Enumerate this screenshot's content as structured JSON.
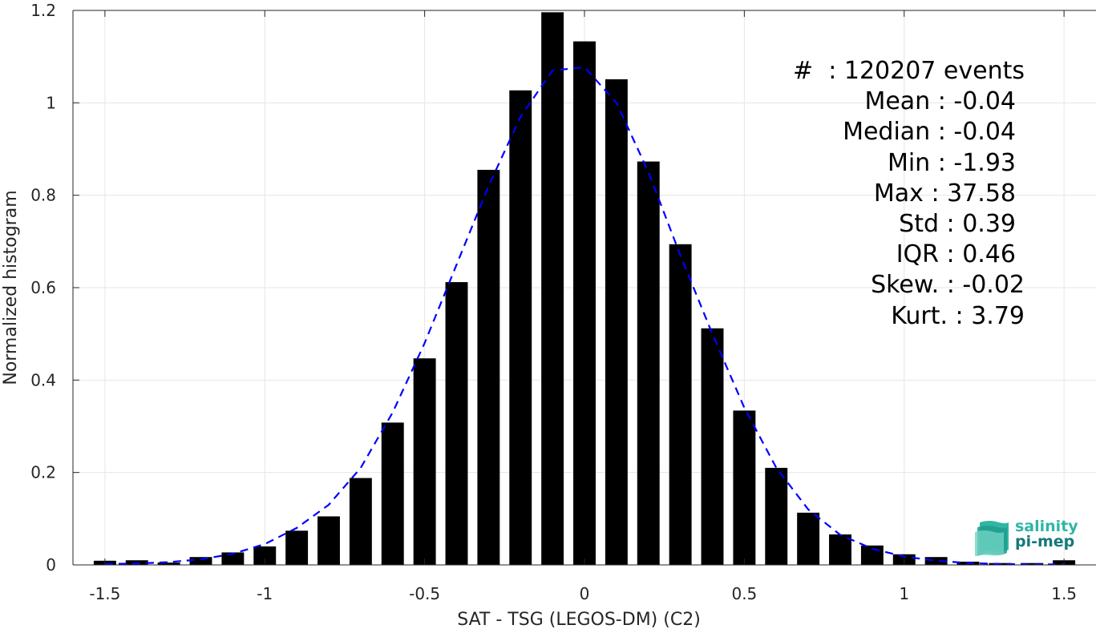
{
  "chart_data": {
    "type": "bar",
    "xlabel": "SAT - TSG (LEGOS-DM) (C2)",
    "ylabel": "Normalized histogram",
    "xlim": [
      -1.6,
      1.6
    ],
    "ylim": [
      0,
      1.2
    ],
    "xticks": [
      "-1.5",
      "-1",
      "-0.5",
      "0",
      "0.5",
      "1",
      "1.5"
    ],
    "xtick_values": [
      -1.5,
      -1,
      -0.5,
      0,
      0.5,
      1,
      1.5
    ],
    "yticks": [
      "0",
      "0.2",
      "0.4",
      "0.6",
      "0.8",
      "1",
      "1.2"
    ],
    "ytick_values": [
      0,
      0.2,
      0.4,
      0.6,
      0.8,
      1.0,
      1.2
    ],
    "grid": true,
    "bar_color": "#000000",
    "fit_color": "#0000ff",
    "bars": {
      "x": [
        -1.5,
        -1.4,
        -1.3,
        -1.2,
        -1.1,
        -1.0,
        -0.9,
        -0.8,
        -0.7,
        -0.6,
        -0.5,
        -0.4,
        -0.3,
        -0.2,
        -0.1,
        0.0,
        0.1,
        0.2,
        0.3,
        0.4,
        0.5,
        0.6,
        0.7,
        0.8,
        0.9,
        1.0,
        1.1,
        1.2,
        1.3,
        1.4,
        1.5
      ],
      "values": [
        0.009,
        0.01,
        0.005,
        0.017,
        0.027,
        0.04,
        0.074,
        0.105,
        0.188,
        0.308,
        0.447,
        0.612,
        0.855,
        1.027,
        1.196,
        1.133,
        1.051,
        0.873,
        0.694,
        0.512,
        0.334,
        0.21,
        0.113,
        0.066,
        0.042,
        0.023,
        0.017,
        0.007,
        0.004,
        0.004,
        0.01
      ]
    },
    "fit": {
      "x": [
        -1.5,
        -1.4,
        -1.3,
        -1.2,
        -1.1,
        -1.0,
        -0.9,
        -0.8,
        -0.7,
        -0.6,
        -0.5,
        -0.4,
        -0.3,
        -0.2,
        -0.1,
        0.0,
        0.1,
        0.2,
        0.3,
        0.4,
        0.5,
        0.6,
        0.7,
        0.8,
        0.9,
        1.0,
        1.1,
        1.2,
        1.3,
        1.4,
        1.5
      ],
      "values": [
        0.002,
        0.003,
        0.006,
        0.012,
        0.024,
        0.045,
        0.08,
        0.13,
        0.21,
        0.33,
        0.48,
        0.65,
        0.82,
        0.97,
        1.07,
        1.077,
        1.0,
        0.85,
        0.67,
        0.5,
        0.34,
        0.21,
        0.12,
        0.065,
        0.035,
        0.018,
        0.009,
        0.004,
        0.002,
        0.001,
        0.001
      ]
    }
  },
  "stats": {
    "events": "#  : 120207 events",
    "mean": "Mean : -0.04",
    "median": "Median : -0.04",
    "min": "Min : -1.93",
    "max": "Max : 37.58",
    "std": "Std : 0.39",
    "iqr": "IQR : 0.46",
    "skew": "Skew. : -0.02",
    "kurt": "Kurt. : 3.79"
  },
  "logo": {
    "line1": "salinity",
    "line2": "pi-mep"
  }
}
